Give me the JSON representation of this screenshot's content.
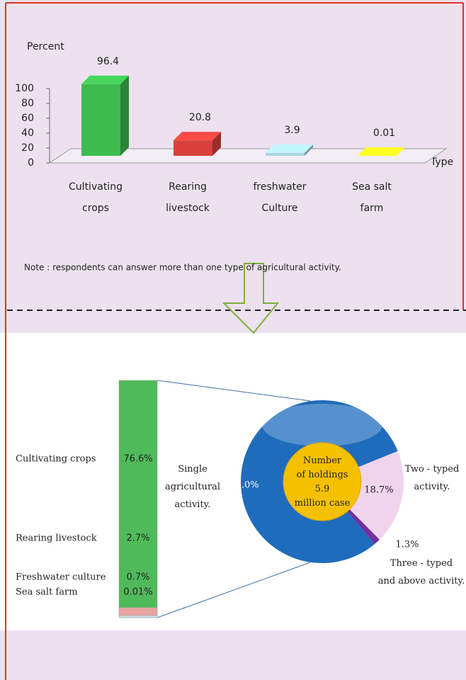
{
  "chart_data": [
    {
      "type": "bar3d",
      "ylabel": "Percent",
      "xlabel": "Type",
      "categories": [
        [
          "Cultivating",
          "crops"
        ],
        [
          "Rearing",
          "livestock"
        ],
        [
          "freshwater",
          "Culture"
        ],
        [
          "Sea salt",
          "farm"
        ]
      ],
      "values": [
        96.4,
        20.8,
        3.9,
        0.01
      ],
      "colors": [
        "#3dbb4f",
        "#d9423c",
        "#a9d6e2",
        "#e0e020"
      ],
      "ylim": [
        0,
        100
      ],
      "yticks": [
        0,
        20,
        40,
        60,
        80,
        100
      ],
      "note": "Note : respondents can answer  more than one type of agricultural activity."
    },
    {
      "type": "stacked_bar",
      "categories": [
        "Cultivating  crops",
        "Rearing  livestock",
        "Freshwater culture",
        "Sea salt farm"
      ],
      "values": [
        76.6,
        2.7,
        0.7,
        0.01
      ],
      "value_labels": [
        "76.6%",
        "2.7%",
        "0.7%",
        "0.01%"
      ],
      "colors": [
        "#4fba5a",
        "#e8a4a0",
        "#cfe6f2",
        "#f0e830"
      ]
    },
    {
      "type": "donut",
      "series": [
        {
          "name": [
            "Single",
            "agricultural",
            "activity."
          ],
          "color": "#1f6cbc"
        },
        {
          "name": [
            "Two - typed",
            "activity."
          ],
          "color": "#f0d4ec"
        },
        {
          "name": [
            "Three - typed",
            "and above activity."
          ],
          "color": "#7030a0"
        }
      ],
      "values": [
        80.0,
        18.7,
        1.3
      ],
      "value_labels": [
        "80.0%",
        "18.7%",
        "1.3%"
      ],
      "center_text": [
        "Number",
        "of holdings",
        "5.9",
        "million case"
      ]
    }
  ]
}
